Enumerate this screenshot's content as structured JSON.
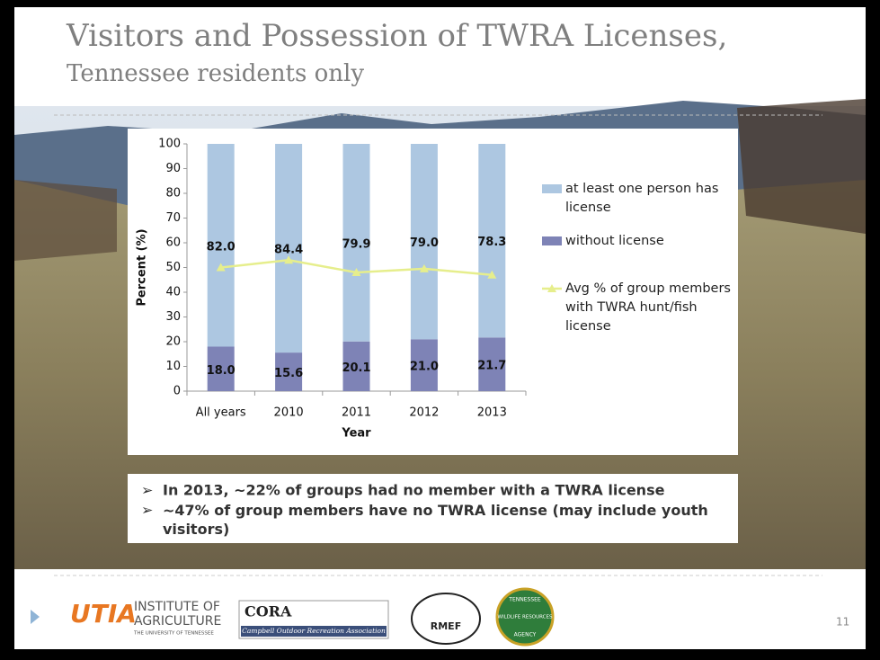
{
  "slide": {
    "title": "Visitors and Possession of TWRA Licenses,",
    "subtitle": "Tennessee residents only",
    "bullets": [
      "In 2013, ~22% of groups had no member with a TWRA license",
      "~47% of group members have no TWRA license (may include youth visitors)"
    ],
    "logos": {
      "utia": "UTIA",
      "utia_line1": "INSTITUTE OF",
      "utia_line2": "AGRICULTURE",
      "utia_line3": "THE UNIVERSITY OF TENNESSEE",
      "cora": "CORA",
      "cora_sub": "Campbell Outdoor Recreation Association",
      "rmef": "RMEF",
      "twra_top": "TENNESSEE",
      "twra_mid": "WILDLIFE RESOURCES",
      "twra_bottom": "AGENCY"
    },
    "page_number": "11"
  },
  "chart_data": {
    "type": "stacked_bar",
    "x_label": "Year",
    "y_label": "Percent (%)",
    "categories": [
      "All years",
      "2010",
      "2011",
      "2012",
      "2013"
    ],
    "ylim": [
      0,
      100
    ],
    "yticks": [
      0,
      10,
      20,
      30,
      40,
      50,
      60,
      70,
      80,
      90,
      100
    ],
    "grid": false,
    "series": [
      {
        "name": "without license",
        "color": "#7e83b6",
        "values": [
          18.0,
          15.6,
          20.1,
          21.0,
          21.7
        ],
        "value_labels": [
          "18.0",
          "15.6",
          "20.1",
          "21.0",
          "21.7"
        ]
      },
      {
        "name": "at least one person has license",
        "color": "#adc7e1",
        "values": [
          82.0,
          84.4,
          79.9,
          79.0,
          78.3
        ],
        "value_labels": [
          "82.0",
          "84.4",
          "79.9",
          "79.0",
          "78.3"
        ]
      },
      {
        "name": "Avg % of group members with TWRA hunt/fish license",
        "type": "line",
        "color": "#e6ee8c",
        "values": [
          50,
          53,
          48,
          49.5,
          47
        ]
      }
    ],
    "legend_position": "right"
  }
}
